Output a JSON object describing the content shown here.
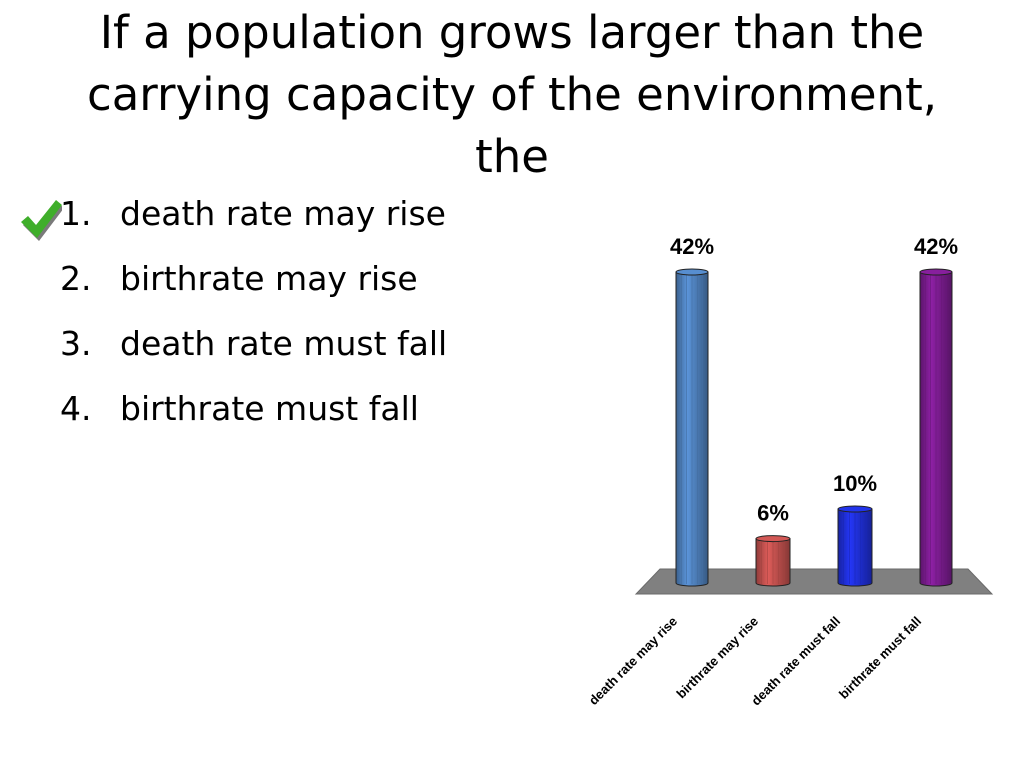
{
  "slide": {
    "title_lines": [
      "If a population grows larger than the",
      "carrying capacity of the environment,",
      "the"
    ]
  },
  "answers": [
    {
      "number": "1.",
      "label": "death rate may rise",
      "correct": true
    },
    {
      "number": "2.",
      "label": "birthrate may rise",
      "correct": false
    },
    {
      "number": "3.",
      "label": "death rate must fall",
      "correct": false
    },
    {
      "number": "4.",
      "label": "birthrate must fall",
      "correct": false
    }
  ],
  "icons": {
    "correct_marker": "checkmark-icon"
  },
  "colors": {
    "check": "#3fae2a",
    "floor": "#808080"
  },
  "chart_data": {
    "type": "bar",
    "categories": [
      "death rate may rise",
      "birthrate may rise",
      "death rate must fall",
      "birthrate must fall"
    ],
    "values": [
      42,
      6,
      10,
      42
    ],
    "data_labels": [
      "42%",
      "6%",
      "10%",
      "42%"
    ],
    "colors": [
      "#4f81bd",
      "#c0504d",
      "#1f2fd6",
      "#7b1c8f"
    ],
    "ylim": [
      0,
      42
    ],
    "grid": false,
    "title": "",
    "xlabel": "",
    "ylabel": ""
  }
}
